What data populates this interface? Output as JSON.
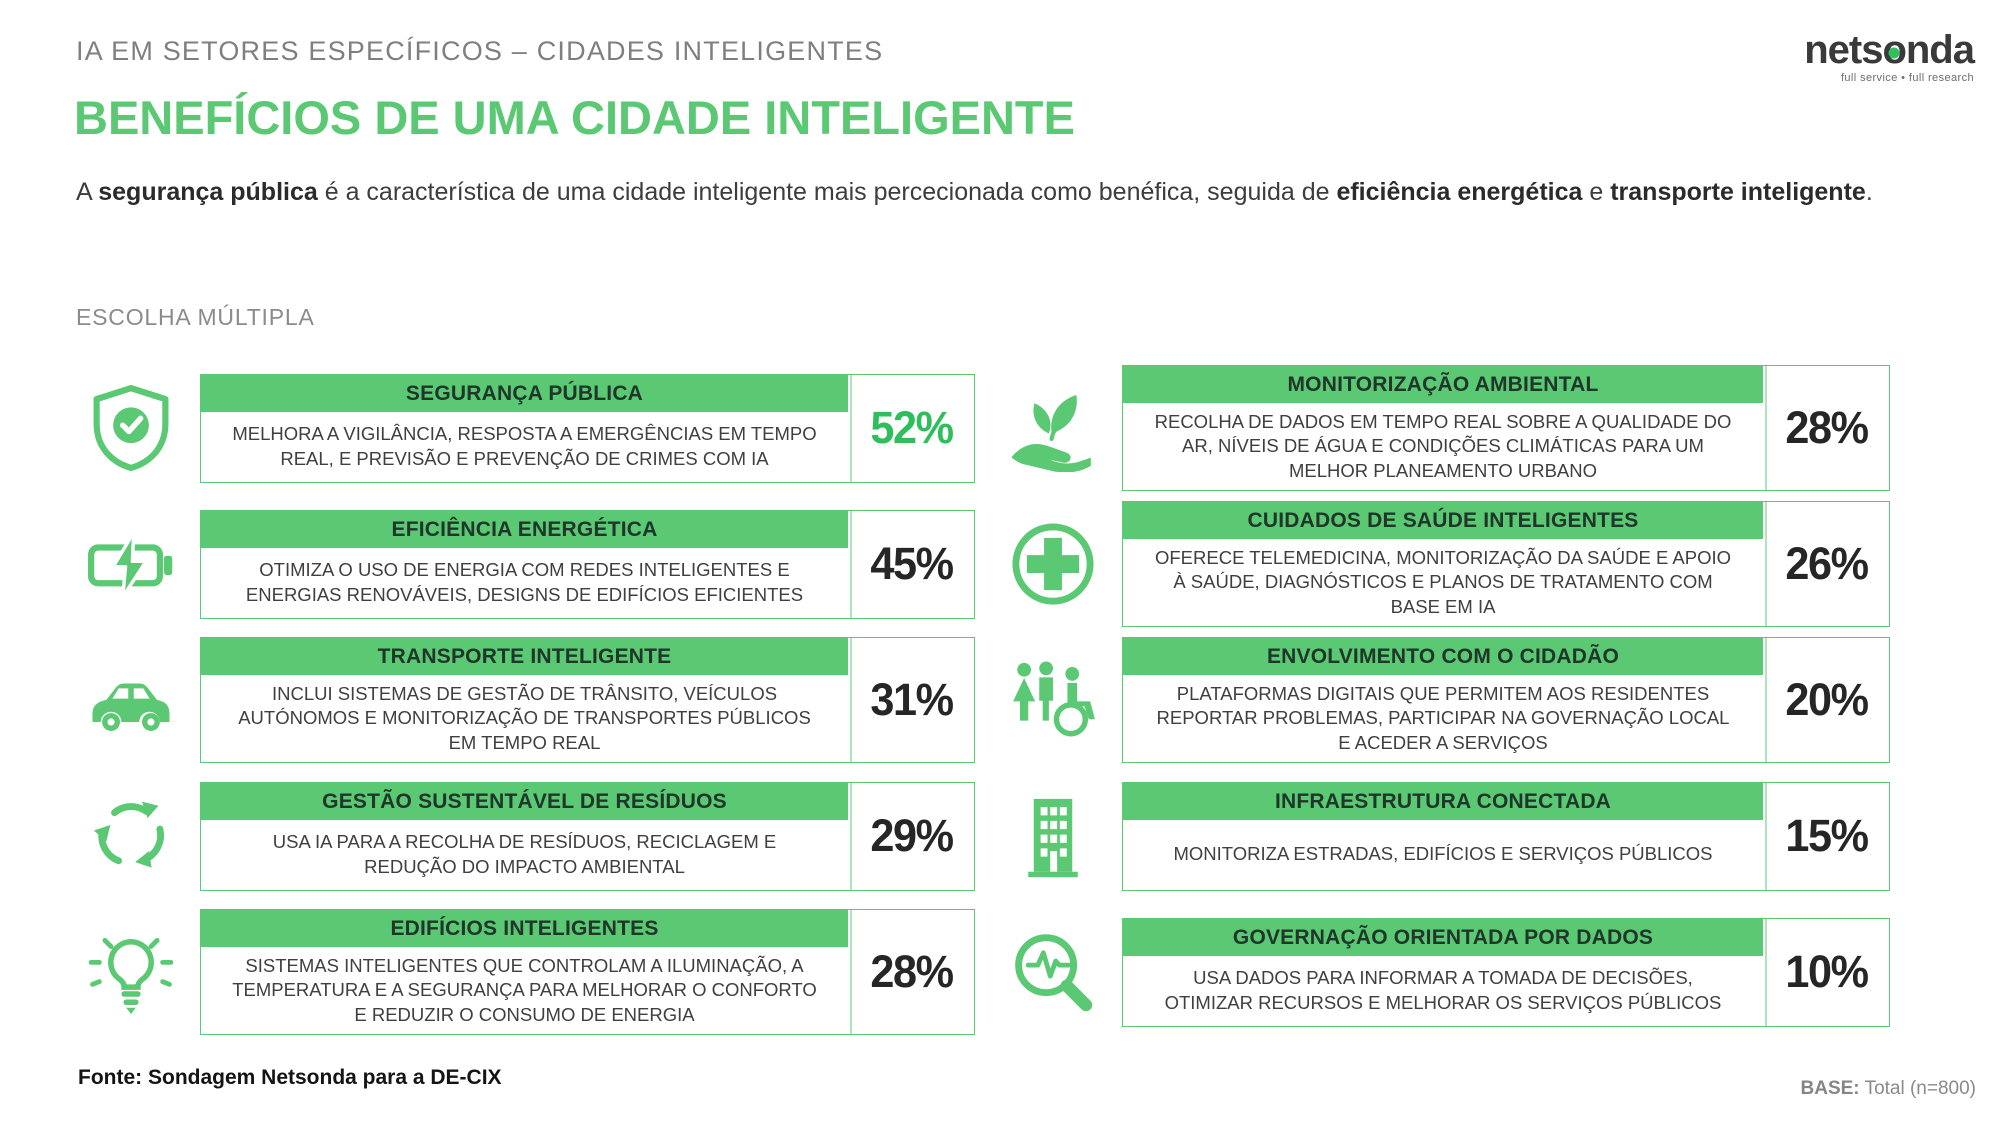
{
  "colors": {
    "accent": "#5bc873",
    "highlight_pct": "#2fbe5c",
    "title_text": "#20362a",
    "kicker_gray": "#7f7f7f"
  },
  "header": {
    "kicker": "IA EM SETORES ESPECÍFICOS – CIDADES INTELIGENTES"
  },
  "logo": {
    "pre": "nets",
    "o": "o",
    "post": "nda",
    "tagline": "full service • full research"
  },
  "title": "BENEFÍCIOS DE UMA CIDADE INTELIGENTE",
  "subtitle": {
    "parts": [
      {
        "text": "A ",
        "bold": false
      },
      {
        "text": "segurança pública",
        "bold": true
      },
      {
        "text": " é a característica de uma cidade inteligente mais percecionada como benéfica, seguida de ",
        "bold": false
      },
      {
        "text": "eficiência energética",
        "bold": true
      },
      {
        "text": " e ",
        "bold": false
      },
      {
        "text": "transporte inteligente",
        "bold": true
      },
      {
        "text": ".",
        "bold": false
      }
    ]
  },
  "note": "ESCOLHA MÚLTIPLA",
  "benefits": {
    "left": [
      {
        "icon": "shield-check",
        "title": "SEGURANÇA PÚBLICA",
        "desc": "MELHORA A VIGILÂNCIA, RESPOSTA A EMERGÊNCIAS EM TEMPO REAL, E PREVISÃO E PREVENÇÃO DE CRIMES COM IA",
        "value": 52,
        "highlight": true
      },
      {
        "icon": "battery-charging",
        "title": "EFICIÊNCIA ENERGÉTICA",
        "desc": "OTIMIZA O USO DE ENERGIA COM REDES INTELIGENTES E ENERGIAS RENOVÁVEIS, DESIGNS DE EDIFÍCIOS EFICIENTES",
        "value": 45,
        "highlight": false
      },
      {
        "icon": "smart-car",
        "title": "TRANSPORTE INTELIGENTE",
        "desc": "INCLUI SISTEMAS DE GESTÃO DE TRÂNSITO, VEÍCULOS AUTÓNOMOS E MONITORIZAÇÃO DE TRANSPORTES PÚBLICOS EM TEMPO REAL",
        "value": 31,
        "highlight": false
      },
      {
        "icon": "recycle",
        "title": "GESTÃO SUSTENTÁVEL DE RESÍDUOS",
        "desc": "USA IA PARA A RECOLHA DE RESÍDUOS, RECICLAGEM E REDUÇÃO DO IMPACTO AMBIENTAL",
        "value": 29,
        "highlight": false
      },
      {
        "icon": "smart-bulb",
        "title": "EDIFÍCIOS INTELIGENTES",
        "desc": "SISTEMAS INTELIGENTES QUE CONTROLAM A ILUMINAÇÃO, A TEMPERATURA E A SEGURANÇA PARA MELHORAR O CONFORTO E REDUZIR O CONSUMO DE ENERGIA",
        "value": 28,
        "highlight": false
      }
    ],
    "right": [
      {
        "icon": "plant-hand",
        "title": "MONITORIZAÇÃO AMBIENTAL",
        "desc": "RECOLHA DE DADOS EM TEMPO REAL SOBRE A QUALIDADE DO AR, NÍVEIS DE ÁGUA E CONDIÇÕES CLIMÁTICAS PARA UM MELHOR PLANEAMENTO URBANO",
        "value": 28,
        "highlight": false
      },
      {
        "icon": "health-cross",
        "title": "CUIDADOS DE SAÚDE INTELIGENTES",
        "desc": "OFERECE TELEMEDICINA, MONITORIZAÇÃO DA SAÚDE E APOIO À SAÚDE, DIAGNÓSTICOS E PLANOS DE TRATAMENTO COM BASE EM IA",
        "value": 26,
        "highlight": false
      },
      {
        "icon": "citizens",
        "title": "ENVOLVIMENTO COM O CIDADÃO",
        "desc": "PLATAFORMAS DIGITAIS QUE PERMITEM AOS RESIDENTES REPORTAR PROBLEMAS, PARTICIPAR NA GOVERNAÇÃO LOCAL E ACEDER A SERVIÇOS",
        "value": 20,
        "highlight": false
      },
      {
        "icon": "building",
        "title": "INFRAESTRUTURA CONECTADA",
        "desc": "MONITORIZA ESTRADAS, EDIFÍCIOS E SERVIÇOS PÚBLICOS",
        "value": 15,
        "highlight": false
      },
      {
        "icon": "data-magnifier",
        "title": "GOVERNAÇÃO ORIENTADA POR DADOS",
        "desc": "USA DADOS PARA INFORMAR A TOMADA DE DECISÕES, OTIMIZAR RECURSOS E MELHORAR OS SERVIÇOS PÚBLICOS",
        "value": 10,
        "highlight": false
      }
    ]
  },
  "footer": {
    "source": "Fonte: Sondagem Netsonda para a DE-CIX",
    "base_label": "BASE:",
    "base_value": "Total (n=800)"
  },
  "chart_data": {
    "type": "table",
    "title": "BENEFÍCIOS DE UMA CIDADE INTELIGENTE",
    "subtitle": "A segurança pública é a característica de uma cidade inteligente mais percecionada como benéfica, seguida de eficiência energética e transporte inteligente.",
    "question_type": "ESCOLHA MÚLTIPLA",
    "unit": "%",
    "categories": [
      "SEGURANÇA PÚBLICA",
      "EFICIÊNCIA ENERGÉTICA",
      "TRANSPORTE INTELIGENTE",
      "GESTÃO SUSTENTÁVEL DE RESÍDUOS",
      "EDIFÍCIOS INTELIGENTES",
      "MONITORIZAÇÃO AMBIENTAL",
      "CUIDADOS DE SAÚDE INTELIGENTES",
      "ENVOLVIMENTO COM O CIDADÃO",
      "INFRAESTRUTURA CONECTADA",
      "GOVERNAÇÃO ORIENTADA POR DADOS"
    ],
    "values": [
      52,
      45,
      31,
      29,
      28,
      28,
      26,
      20,
      15,
      10
    ],
    "base": "Total (n=800)",
    "source": "Fonte: Sondagem Netsonda para a DE-CIX"
  }
}
